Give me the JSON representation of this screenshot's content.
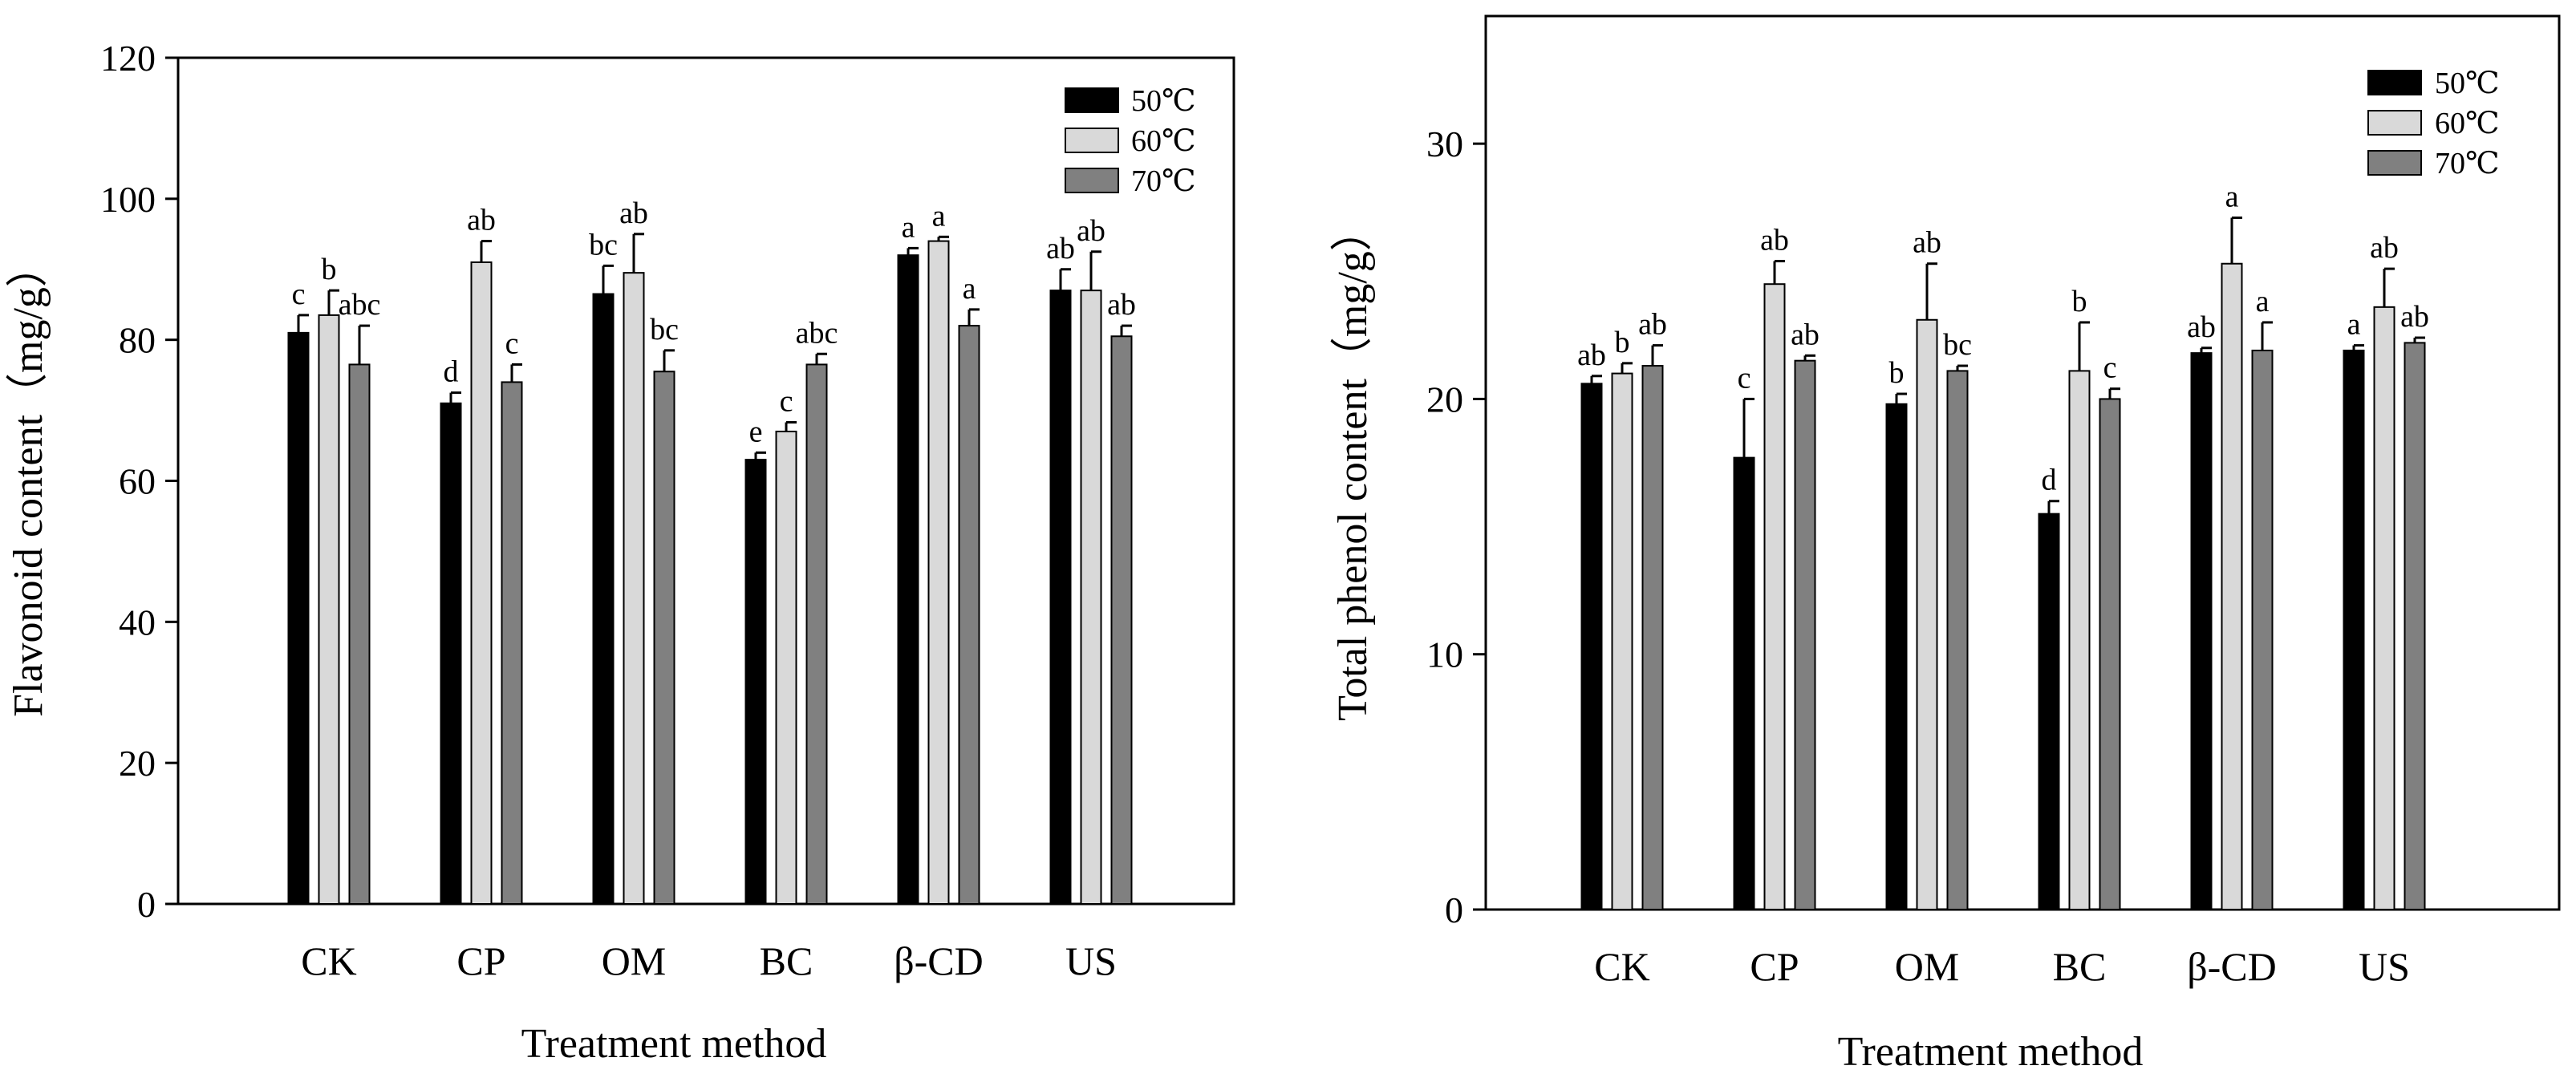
{
  "colors": {
    "50C": "#000000",
    "60C": "#d9d9d9",
    "70C": "#808080",
    "axis": "#000000"
  },
  "chart_data": [
    {
      "type": "bar",
      "title": "",
      "xlabel": "Treatment method",
      "ylabel": "Flavonoid content（mg/g）",
      "ylim": [
        0,
        120
      ],
      "yticks": [
        "0",
        "20",
        "40",
        "60",
        "80",
        "100",
        "120"
      ],
      "categories": [
        "CK",
        "CP",
        "OM",
        "BC",
        "β-CD",
        "US"
      ],
      "legend_position": "top-right",
      "series": [
        {
          "name": "50℃",
          "color_key": "50C",
          "values": [
            81,
            71,
            86.5,
            63,
            92,
            87
          ],
          "errors": [
            2.5,
            1.5,
            4,
            1,
            1,
            3
          ],
          "labels": [
            "c",
            "d",
            "bc",
            "e",
            "a",
            "ab"
          ]
        },
        {
          "name": "60℃",
          "color_key": "60C",
          "values": [
            83.5,
            91,
            89.5,
            67,
            94,
            87
          ],
          "errors": [
            3.5,
            3,
            5.5,
            1.3,
            0.6,
            5.5
          ],
          "labels": [
            "b",
            "ab",
            "ab",
            "c",
            "a",
            "ab"
          ]
        },
        {
          "name": "70℃",
          "color_key": "70C",
          "values": [
            76.5,
            74,
            75.5,
            76.5,
            82,
            80.5
          ],
          "errors": [
            5.5,
            2.5,
            3,
            1.5,
            2.3,
            1.5
          ],
          "labels": [
            "abc",
            "c",
            "bc",
            "abc",
            "a",
            "ab"
          ]
        }
      ]
    },
    {
      "type": "bar",
      "title": "",
      "xlabel": "Treatment method",
      "ylabel": "Total phenol content（mg/g）",
      "ylim": [
        0,
        35
      ],
      "yticks": [
        "0",
        "10",
        "20",
        "30"
      ],
      "categories": [
        "CK",
        "CP",
        "OM",
        "BC",
        "β-CD",
        "US"
      ],
      "legend_position": "top-right",
      "series": [
        {
          "name": "50℃",
          "color_key": "50C",
          "values": [
            20.6,
            17.7,
            19.8,
            15.5,
            21.8,
            21.9
          ],
          "errors": [
            0.3,
            2.3,
            0.4,
            0.5,
            0.2,
            0.2
          ],
          "labels": [
            "ab",
            "c",
            "b",
            "d",
            "ab",
            "a"
          ]
        },
        {
          "name": "60℃",
          "color_key": "60C",
          "values": [
            21,
            24.5,
            23.1,
            21.1,
            25.3,
            23.6
          ],
          "errors": [
            0.4,
            0.9,
            2.2,
            1.9,
            1.8,
            1.5
          ],
          "labels": [
            "b",
            "ab",
            "ab",
            "b",
            "a",
            "ab"
          ]
        },
        {
          "name": "70℃",
          "color_key": "70C",
          "values": [
            21.3,
            21.5,
            21.1,
            20,
            21.9,
            22.2
          ],
          "errors": [
            0.8,
            0.2,
            0.2,
            0.4,
            1.1,
            0.2
          ],
          "labels": [
            "ab",
            "ab",
            "bc",
            "c",
            "a",
            "ab"
          ]
        }
      ]
    }
  ]
}
